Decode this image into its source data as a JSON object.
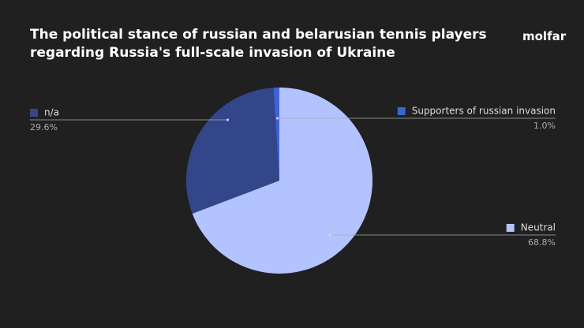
{
  "chart_data": {
    "type": "pie",
    "title": "The political stance of russian and belarusian tennis players regarding Russia's full-scale invasion of Ukraine",
    "logo": "molfar",
    "categories": [
      "Neutral",
      "n/a",
      "Supporters of russian invasion"
    ],
    "values": [
      68.8,
      29.6,
      1.0
    ],
    "value_labels": [
      "68.8%",
      "29.6%",
      "1.0%"
    ],
    "colors": [
      "#b3c3ff",
      "#33468a",
      "#3d63d6"
    ]
  }
}
